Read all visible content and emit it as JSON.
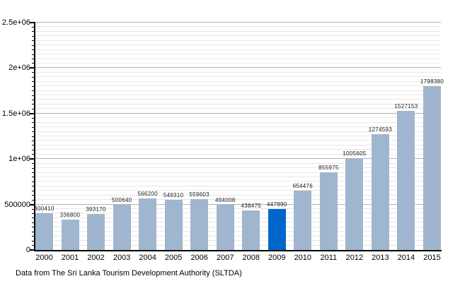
{
  "chart_data": {
    "type": "bar",
    "title": "",
    "categories": [
      "2000",
      "2001",
      "2002",
      "2003",
      "2004",
      "2005",
      "2006",
      "2007",
      "2008",
      "2009",
      "2010",
      "2011",
      "2012",
      "2013",
      "2014",
      "2015"
    ],
    "values": [
      400410,
      336800,
      393170,
      500640,
      566200,
      549310,
      559603,
      494008,
      438475,
      447890,
      654476,
      855975,
      1005605,
      1274593,
      1527153,
      1798380
    ],
    "bar_labels": [
      "400410",
      "336800",
      "393170",
      "500640",
      "566200",
      "549310",
      "559603",
      "494008",
      "438475",
      "447890",
      "654476",
      "855975",
      "1005605",
      "1274593",
      "1527153",
      "1798380"
    ],
    "highlight": {
      "index": 9,
      "color": "#0066cc"
    },
    "bar_color": "#9fb6ce",
    "ylim": [
      0,
      2500000
    ],
    "yticks": [
      {
        "value": 0,
        "label": "0"
      },
      {
        "value": 500000,
        "label": "500000"
      },
      {
        "value": 1000000,
        "label": "1e+06"
      },
      {
        "value": 1500000,
        "label": "1.5e+06"
      },
      {
        "value": 2000000,
        "label": "2e+06"
      },
      {
        "value": 2500000,
        "label": "2.5e+06"
      }
    ],
    "minor_tick_step": 50000,
    "grid": {
      "show": true,
      "minor_color": "#e7e7e7",
      "major_color": "#b3b3b3"
    },
    "axis_color": "#000000",
    "legend": "none",
    "caption": "Data from The Sri Lanka Tourism Development Authority (SLTDA)"
  }
}
